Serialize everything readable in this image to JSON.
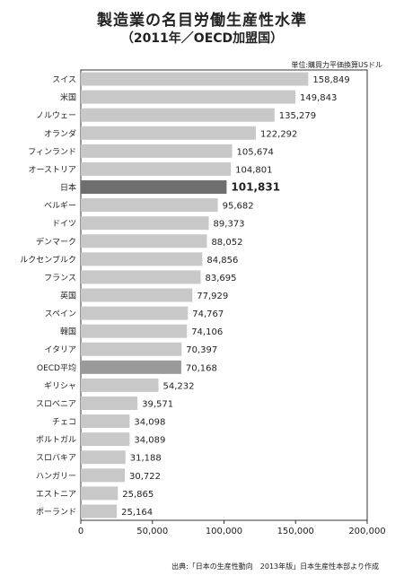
{
  "chart_data": {
    "type": "bar",
    "orientation": "horizontal",
    "title": "製造業の名目労働生産性水準",
    "subtitle": "（2011年／OECD加盟国）",
    "unit_note": "単位:購買力平価換算USドル",
    "source": "出典:「日本の生産性動向　2013年版」日本生産性本部より作成",
    "categories": [
      "スイス",
      "米国",
      "ノルウェー",
      "オランダ",
      "フィンランド",
      "オーストリア",
      "日本",
      "ベルギー",
      "ドイツ",
      "デンマーク",
      "ルクセンブルク",
      "フランス",
      "英国",
      "スペイン",
      "韓国",
      "イタリア",
      "OECD平均",
      "ギリシャ",
      "スロベニア",
      "チェコ",
      "ポルトガル",
      "スロバキア",
      "ハンガリー",
      "エストニア",
      "ポーランド"
    ],
    "values": [
      158849,
      149843,
      135279,
      122292,
      105674,
      104801,
      101831,
      95682,
      89373,
      88052,
      84856,
      83695,
      77929,
      74767,
      74106,
      70397,
      70168,
      54232,
      39571,
      34098,
      34089,
      31188,
      30722,
      25865,
      25164
    ],
    "value_labels": [
      "158,849",
      "149,843",
      "135,279",
      "122,292",
      "105,674",
      "104,801",
      "101,831",
      "95,682",
      "89,373",
      "88,052",
      "84,856",
      "83,695",
      "77,929",
      "74,767",
      "74,106",
      "70,397",
      "70,168",
      "54,232",
      "39,571",
      "34,098",
      "34,089",
      "31,188",
      "30,722",
      "25,865",
      "25,164"
    ],
    "highlight": {
      "日本": "#6e6e6e",
      "OECD平均": "#9a9a9a"
    },
    "xlim": [
      0,
      200000
    ],
    "xticks": [
      0,
      50000,
      100000,
      150000,
      200000
    ],
    "xtick_labels": [
      "0",
      "50,000",
      "100,000",
      "150,000",
      "200,000"
    ],
    "grid": false,
    "colors": {
      "bar": "#c8c8c8",
      "frame": "#333333"
    }
  }
}
